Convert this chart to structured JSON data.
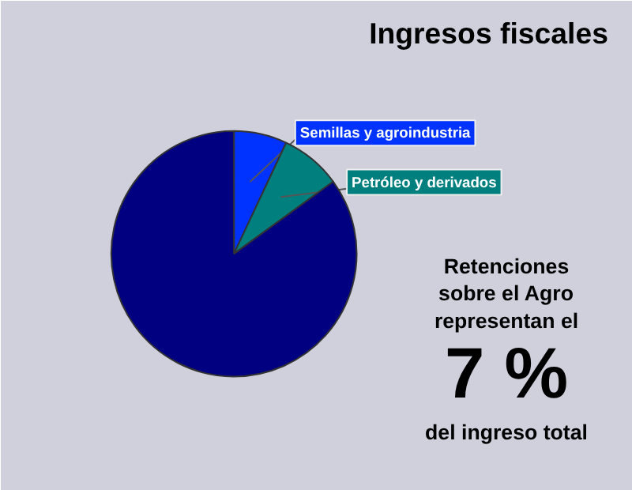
{
  "chart_data": {
    "type": "pie",
    "title": "Ingresos fiscales",
    "categories": [
      "Semillas y agroindustria",
      "Petróleo y derivados",
      null
    ],
    "values": [
      7,
      8,
      85
    ],
    "colors": [
      "#0033ff",
      "#007f7f",
      "#000080"
    ],
    "annotations": [
      "Retenciones\nsobre el Agro\nrepresentan el",
      "7 %",
      "del ingreso total"
    ]
  }
}
